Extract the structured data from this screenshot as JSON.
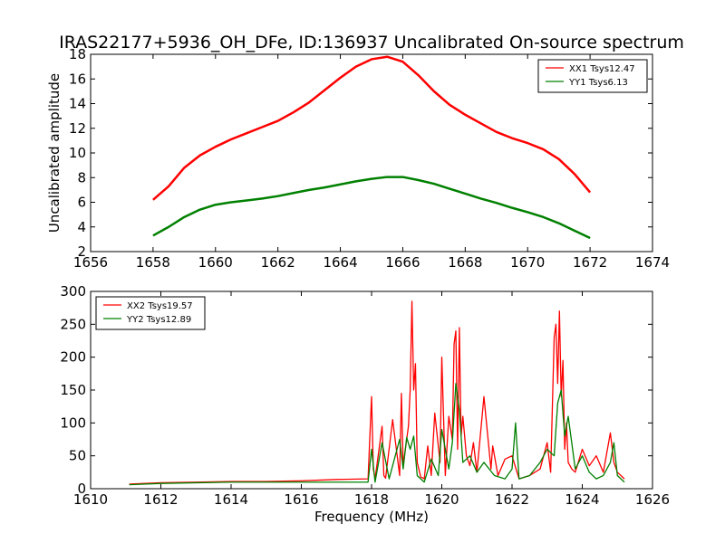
{
  "title": "IRAS22177+5936_OH_DFe, ID:136937 Uncalibrated On-source spectrum",
  "chart_data": [
    {
      "type": "line",
      "title": "IRAS22177+5936_OH_DFe, ID:136937 Uncalibrated On-source spectrum",
      "xlabel": "",
      "ylabel": "Uncalibrated amplitude",
      "xlim": [
        1656,
        1674
      ],
      "ylim": [
        2,
        18
      ],
      "xticks": [
        1656,
        1658,
        1660,
        1662,
        1664,
        1666,
        1668,
        1670,
        1672,
        1674
      ],
      "yticks": [
        2,
        4,
        6,
        8,
        10,
        12,
        14,
        16,
        18
      ],
      "grid": false,
      "legend": "top-right",
      "series": [
        {
          "name": "XX1 Tsys12.47",
          "color": "#ff0000",
          "x": [
            1658,
            1658.5,
            1659,
            1659.5,
            1660,
            1660.5,
            1661,
            1661.5,
            1662,
            1662.5,
            1663,
            1663.5,
            1664,
            1664.5,
            1665,
            1665.5,
            1666,
            1666.5,
            1667,
            1667.5,
            1668,
            1668.5,
            1669,
            1669.5,
            1670,
            1670.5,
            1671,
            1671.5,
            1672
          ],
          "y": [
            6.2,
            7.3,
            8.8,
            9.8,
            10.5,
            11.1,
            11.6,
            12.1,
            12.6,
            13.3,
            14.1,
            15.1,
            16.1,
            17.0,
            17.6,
            17.8,
            17.4,
            16.3,
            15.0,
            13.9,
            13.1,
            12.4,
            11.7,
            11.2,
            10.8,
            10.3,
            9.5,
            8.3,
            6.8
          ]
        },
        {
          "name": "YY1 Tsys6.13",
          "color": "#008000",
          "x": [
            1658,
            1658.5,
            1659,
            1659.5,
            1660,
            1660.5,
            1661,
            1661.5,
            1662,
            1662.5,
            1663,
            1663.5,
            1664,
            1664.5,
            1665,
            1665.5,
            1666,
            1666.5,
            1667,
            1667.5,
            1668,
            1668.5,
            1669,
            1669.5,
            1670,
            1670.5,
            1671,
            1671.5,
            1672
          ],
          "y": [
            3.3,
            4.0,
            4.8,
            5.4,
            5.8,
            6.0,
            6.15,
            6.3,
            6.5,
            6.75,
            7.0,
            7.2,
            7.45,
            7.7,
            7.9,
            8.05,
            8.05,
            7.8,
            7.5,
            7.1,
            6.7,
            6.3,
            5.95,
            5.55,
            5.2,
            4.8,
            4.3,
            3.7,
            3.1
          ]
        }
      ]
    },
    {
      "type": "line",
      "title": "",
      "xlabel": "Frequency (MHz)",
      "ylabel": "",
      "xlim": [
        1610,
        1626
      ],
      "ylim": [
        0,
        300
      ],
      "xticks": [
        1610,
        1612,
        1614,
        1616,
        1618,
        1620,
        1622,
        1624,
        1626
      ],
      "yticks": [
        0,
        50,
        100,
        150,
        200,
        250,
        300
      ],
      "grid": false,
      "legend": "top-left",
      "series": [
        {
          "name": "XX2 Tsys19.57",
          "color": "#ff0000",
          "x": [
            1611.1,
            1612,
            1613,
            1614,
            1615,
            1616,
            1617,
            1617.9,
            1618.0,
            1618.05,
            1618.1,
            1618.3,
            1618.35,
            1618.4,
            1618.6,
            1618.8,
            1618.85,
            1618.9,
            1619.05,
            1619.1,
            1619.15,
            1619.2,
            1619.25,
            1619.3,
            1619.4,
            1619.5,
            1619.6,
            1619.7,
            1619.8,
            1619.95,
            1620.0,
            1620.1,
            1620.2,
            1620.3,
            1620.35,
            1620.4,
            1620.45,
            1620.5,
            1620.55,
            1620.6,
            1620.7,
            1620.8,
            1620.9,
            1621.0,
            1621.2,
            1621.4,
            1621.45,
            1621.6,
            1621.8,
            1622.0,
            1622.2,
            1622.5,
            1622.8,
            1623.0,
            1623.1,
            1623.2,
            1623.25,
            1623.3,
            1623.35,
            1623.4,
            1623.45,
            1623.5,
            1623.55,
            1623.6,
            1623.7,
            1623.8,
            1624.0,
            1624.2,
            1624.4,
            1624.6,
            1624.8,
            1624.9,
            1625.0,
            1625.2
          ],
          "y": [
            7,
            9,
            10,
            11,
            11,
            12,
            14,
            15,
            140,
            30,
            15,
            95,
            20,
            16,
            105,
            20,
            145,
            35,
            95,
            150,
            285,
            150,
            190,
            40,
            18,
            15,
            65,
            20,
            115,
            40,
            200,
            20,
            110,
            75,
            220,
            240,
            60,
            245,
            80,
            110,
            50,
            35,
            70,
            25,
            140,
            30,
            65,
            20,
            45,
            50,
            15,
            20,
            30,
            70,
            25,
            230,
            250,
            160,
            270,
            140,
            195,
            60,
            100,
            40,
            30,
            25,
            60,
            35,
            50,
            25,
            85,
            40,
            25,
            15
          ]
        },
        {
          "name": "YY2 Tsys12.89",
          "color": "#008000",
          "x": [
            1611.1,
            1612,
            1613,
            1614,
            1615,
            1616,
            1617,
            1617.9,
            1618.0,
            1618.1,
            1618.3,
            1618.5,
            1618.8,
            1618.9,
            1619.0,
            1619.1,
            1619.2,
            1619.3,
            1619.5,
            1619.7,
            1619.9,
            1620.0,
            1620.2,
            1620.3,
            1620.4,
            1620.5,
            1620.6,
            1620.8,
            1621.0,
            1621.2,
            1621.5,
            1621.8,
            1622.0,
            1622.1,
            1622.2,
            1622.5,
            1622.8,
            1623.0,
            1623.2,
            1623.3,
            1623.4,
            1623.5,
            1623.6,
            1623.8,
            1624.0,
            1624.2,
            1624.4,
            1624.6,
            1624.8,
            1624.9,
            1625.0,
            1625.2
          ],
          "y": [
            6,
            8,
            9,
            10,
            10,
            10,
            10,
            10,
            60,
            10,
            70,
            15,
            75,
            30,
            78,
            60,
            80,
            20,
            10,
            45,
            20,
            90,
            30,
            70,
            160,
            120,
            40,
            50,
            25,
            40,
            20,
            15,
            30,
            100,
            15,
            20,
            40,
            60,
            50,
            130,
            150,
            80,
            110,
            30,
            50,
            25,
            15,
            20,
            40,
            70,
            20,
            10
          ]
        }
      ]
    }
  ]
}
